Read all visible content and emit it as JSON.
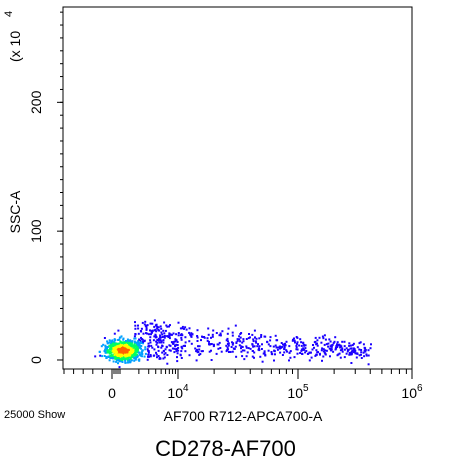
{
  "chart_data": {
    "type": "scatter",
    "style": "flow-cytometry density dot plot",
    "xlabel": "AF700 R712-APCA700-A",
    "ylabel": "SSC-A",
    "y_multiplier_label": "(x 10",
    "y_multiplier_exp": "4",
    "y_ticks": [
      {
        "label": "0",
        "value": 0
      },
      {
        "label": "100",
        "value": 100
      },
      {
        "label": "200",
        "value": 200
      }
    ],
    "ylim": [
      -7,
      274
    ],
    "x_ticks": [
      {
        "label": "0",
        "value": 0,
        "exp": ""
      },
      {
        "label": "10",
        "value": 10000,
        "exp": "4"
      },
      {
        "label": "10",
        "value": 100000,
        "exp": "5"
      },
      {
        "label": "10",
        "value": 1000000,
        "exp": "6"
      }
    ],
    "x_scale": "biexponential",
    "events_label": "25000 Show",
    "caption": "CD278-AF700",
    "population": {
      "core_x": 1000,
      "core_y": 8,
      "tail_x_max": 400000,
      "y_range": [
        0,
        35
      ]
    },
    "colors": {
      "low": "#1a00ff",
      "mid_low": "#00a0ff",
      "mid": "#00ff60",
      "mid_high": "#ffff00",
      "high": "#ff6000",
      "axis": "#000000"
    }
  }
}
